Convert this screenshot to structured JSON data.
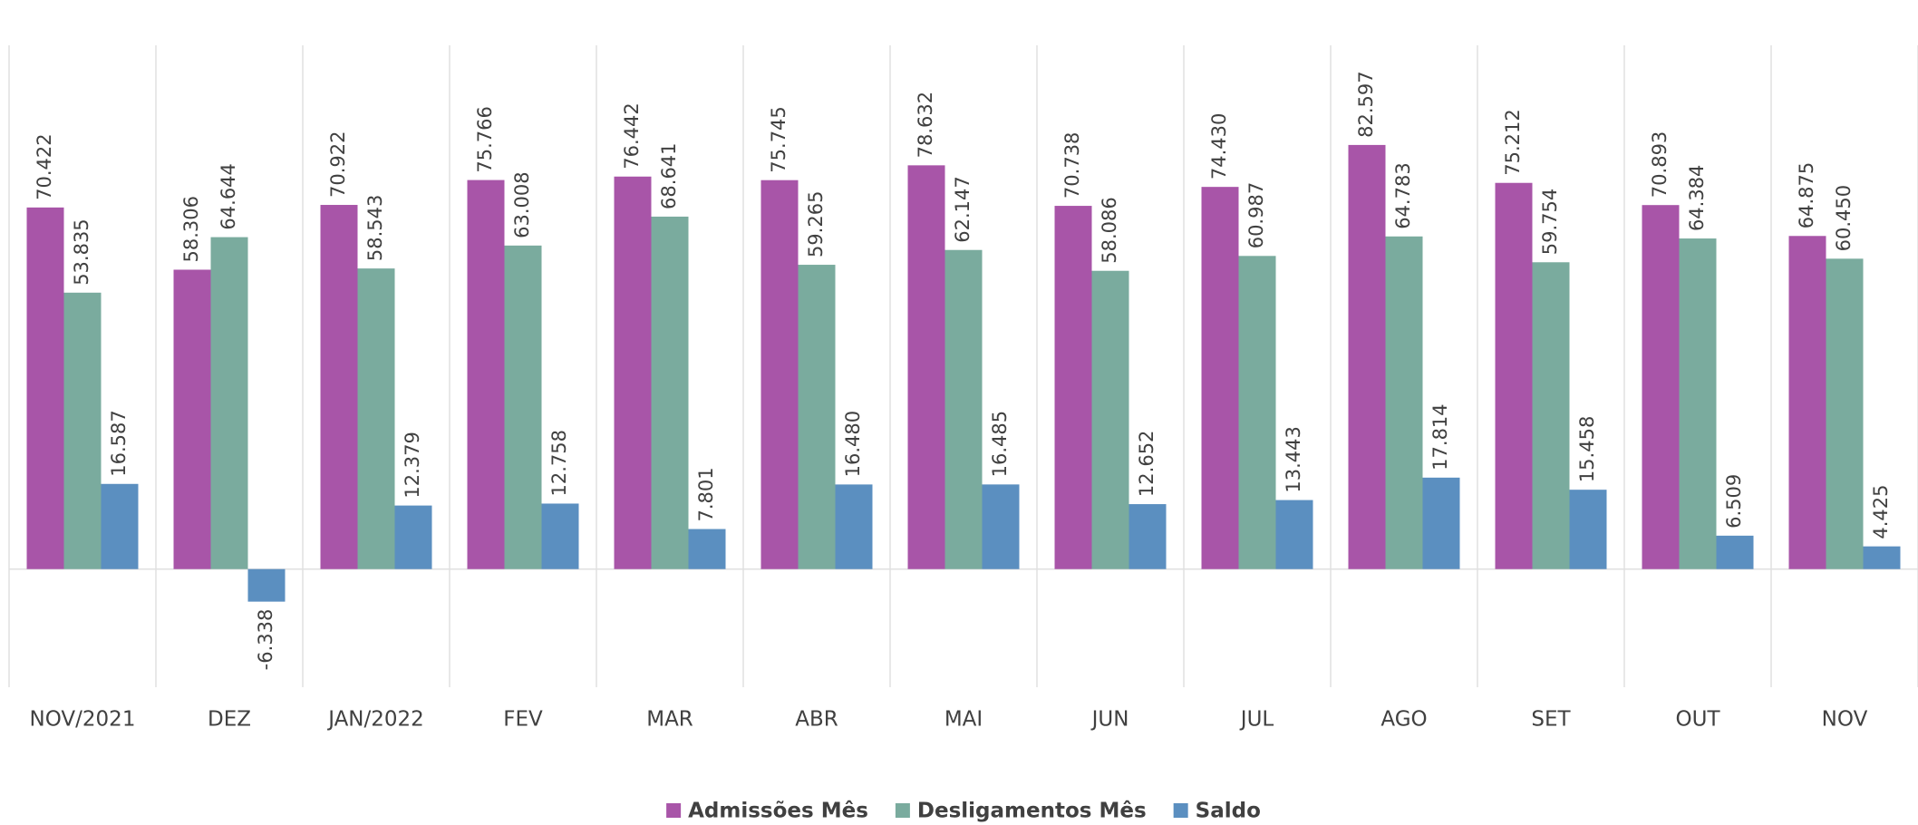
{
  "chart_data": {
    "type": "bar",
    "categories": [
      "NOV/2021",
      "DEZ",
      "JAN/2022",
      "FEV",
      "MAR",
      "ABR",
      "MAI",
      "JUN",
      "JUL",
      "AGO",
      "SET",
      "OUT",
      "NOV"
    ],
    "series": [
      {
        "name": "Admissões Mês",
        "color": "#a855a8",
        "values": [
          70422,
          58306,
          70922,
          75766,
          76442,
          75745,
          78632,
          70738,
          74430,
          82597,
          75212,
          70893,
          64875
        ],
        "value_labels": [
          "70.422",
          "58.306",
          "70.922",
          "75.766",
          "76.442",
          "75.745",
          "78.632",
          "70.738",
          "74.430",
          "82.597",
          "75.212",
          "70.893",
          "64.875"
        ]
      },
      {
        "name": "Desligamentos Mês",
        "color": "#7aab9e",
        "values": [
          53835,
          64644,
          58543,
          63008,
          68641,
          59265,
          62147,
          58086,
          60987,
          64783,
          59754,
          64384,
          60450
        ],
        "value_labels": [
          "53.835",
          "64.644",
          "58.543",
          "63.008",
          "68.641",
          "59.265",
          "62.147",
          "58.086",
          "60.987",
          "64.783",
          "59.754",
          "64.384",
          "60.450"
        ]
      },
      {
        "name": "Saldo",
        "color": "#5b8fc0",
        "values": [
          16587,
          -6338,
          12379,
          12758,
          7801,
          16480,
          16485,
          12652,
          13443,
          17814,
          15458,
          6509,
          4425
        ],
        "value_labels": [
          "16.587",
          "-6.338",
          "12.379",
          "12.758",
          "7.801",
          "16.480",
          "16.485",
          "12.652",
          "13.443",
          "17.814",
          "15.458",
          "6.509",
          "4.425"
        ]
      }
    ],
    "ylim": [
      -23000,
      102000
    ],
    "legend": "bottom"
  }
}
